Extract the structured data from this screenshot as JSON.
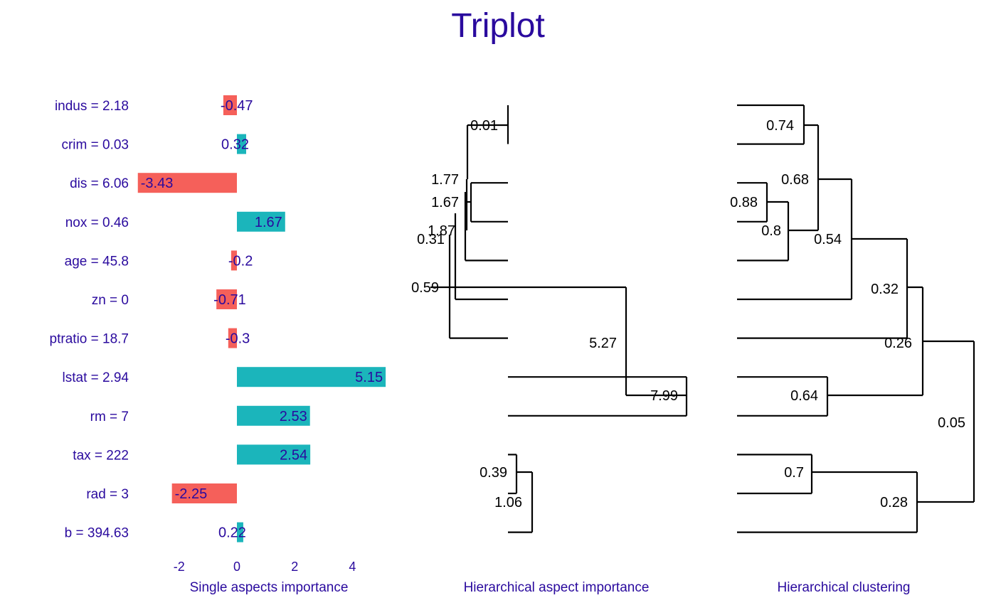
{
  "title": "Triplot",
  "colors": {
    "title": "#2a0a9e",
    "label": "#2a0a9e",
    "positive": "#1bb5bb",
    "negative": "#f5605a",
    "tree": "#000000"
  },
  "chart_data": [
    {
      "type": "bar",
      "orientation": "horizontal",
      "xlabel": "Single aspects importance",
      "categories": [
        "indus = 2.18",
        "crim = 0.03",
        "dis = 6.06",
        "nox = 0.46",
        "age = 45.8",
        "zn = 0",
        "ptratio = 18.7",
        "lstat = 2.94",
        "rm = 7",
        "tax = 222",
        "rad = 3",
        "b = 394.63"
      ],
      "values": [
        -0.47,
        0.32,
        -3.43,
        1.67,
        -0.2,
        -0.71,
        -0.3,
        5.15,
        2.53,
        2.54,
        -2.25,
        0.22
      ],
      "xticks": [
        -2,
        0,
        2,
        4
      ],
      "xlim": [
        -3.6,
        5.3
      ]
    },
    {
      "type": "dendrogram",
      "xlabel": "Hierarchical aspect importance",
      "merge_labels": [
        "0.01",
        "1.77",
        "1.67",
        "1.87",
        "0.31",
        "0.59",
        "5.27",
        "7.99",
        "0.39",
        "1.06"
      ]
    },
    {
      "type": "dendrogram",
      "xlabel": "Hierarchical clustering",
      "merge_labels": [
        "0.74",
        "0.68",
        "0.88",
        "0.8",
        "0.54",
        "0.32",
        "0.26",
        "0.64",
        "0.05",
        "0.7",
        "0.28"
      ]
    }
  ]
}
